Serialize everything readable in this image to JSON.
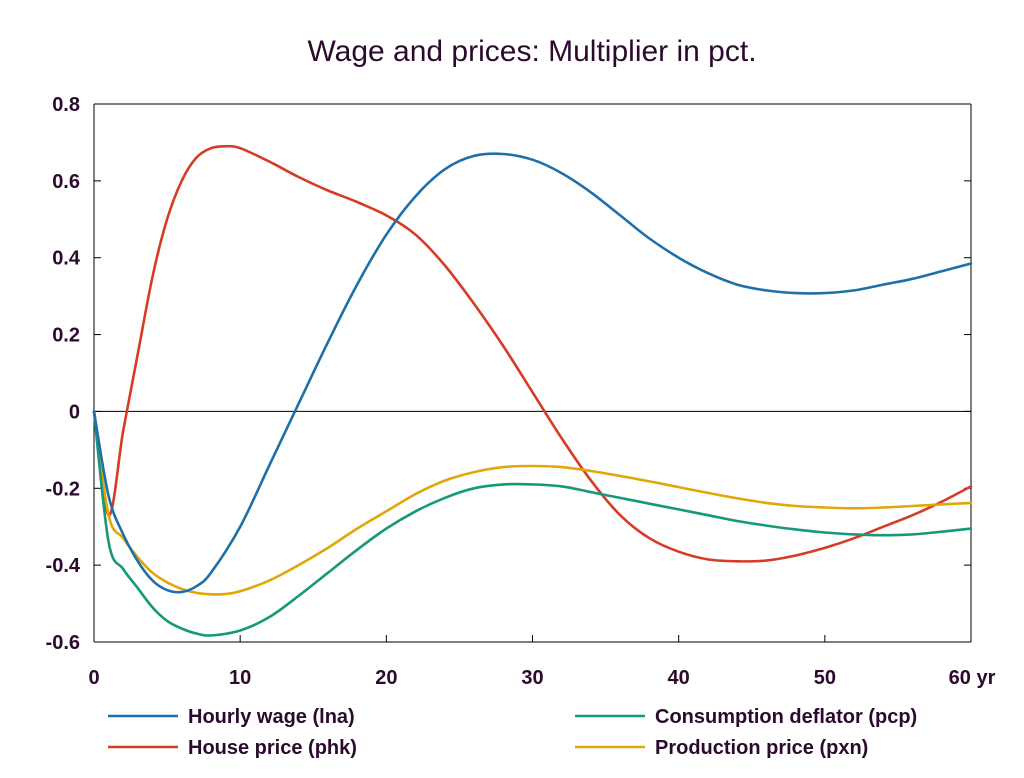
{
  "chart_data": {
    "type": "line",
    "title": "Wage and prices: Multiplier in pct.",
    "xlabel": "",
    "ylabel": "",
    "x_unit": "yr",
    "xlim": [
      0,
      60
    ],
    "ylim": [
      -0.6,
      0.8
    ],
    "x_ticks": [
      0,
      10,
      20,
      30,
      40,
      50,
      60
    ],
    "y_ticks": [
      0.8,
      0.6,
      0.4,
      0.2,
      0,
      -0.2,
      -0.4,
      -0.6
    ],
    "y_tick_labels": [
      "0.8",
      "0.6",
      "0.4",
      "0.2",
      "0",
      "-0.2",
      "-0.4",
      "-0.6"
    ],
    "legend_position": "bottom",
    "series": [
      {
        "name": "Hourly wage (lna)",
        "color": "#1f6fa8",
        "x": [
          0,
          1,
          2,
          3,
          4,
          5,
          6,
          7,
          8,
          10,
          12,
          14,
          16,
          18,
          20,
          22,
          24,
          26,
          28,
          30,
          32,
          34,
          36,
          38,
          40,
          42,
          44,
          46,
          48,
          50,
          52,
          54,
          56,
          58,
          60
        ],
        "y": [
          0,
          -0.22,
          -0.32,
          -0.39,
          -0.44,
          -0.465,
          -0.47,
          -0.455,
          -0.42,
          -0.3,
          -0.14,
          0.02,
          0.18,
          0.33,
          0.46,
          0.56,
          0.63,
          0.665,
          0.67,
          0.655,
          0.62,
          0.57,
          0.51,
          0.45,
          0.4,
          0.36,
          0.33,
          0.315,
          0.308,
          0.308,
          0.315,
          0.33,
          0.345,
          0.365,
          0.385
        ]
      },
      {
        "name": "House price (phk)",
        "color": "#d63b26",
        "x": [
          0,
          1,
          2,
          3,
          4,
          5,
          6,
          7,
          8,
          9,
          10,
          12,
          14,
          16,
          18,
          20,
          22,
          24,
          26,
          28,
          30,
          32,
          34,
          36,
          38,
          40,
          42,
          44,
          46,
          48,
          50,
          52,
          54,
          56,
          58,
          60
        ],
        "y": [
          0,
          -0.27,
          -0.05,
          0.15,
          0.35,
          0.5,
          0.6,
          0.66,
          0.685,
          0.69,
          0.685,
          0.65,
          0.61,
          0.575,
          0.545,
          0.51,
          0.46,
          0.38,
          0.28,
          0.17,
          0.05,
          -0.07,
          -0.18,
          -0.27,
          -0.33,
          -0.365,
          -0.385,
          -0.39,
          -0.388,
          -0.375,
          -0.355,
          -0.33,
          -0.3,
          -0.27,
          -0.235,
          -0.195
        ]
      },
      {
        "name": "Consumption deflator (pcp)",
        "color": "#17987a",
        "x": [
          0,
          1,
          2,
          3,
          4,
          5,
          6,
          7,
          8,
          10,
          12,
          14,
          16,
          18,
          20,
          22,
          24,
          26,
          28,
          30,
          32,
          34,
          36,
          38,
          40,
          42,
          44,
          46,
          48,
          50,
          52,
          54,
          56,
          58,
          60
        ],
        "y": [
          0,
          -0.34,
          -0.41,
          -0.46,
          -0.51,
          -0.545,
          -0.565,
          -0.578,
          -0.583,
          -0.57,
          -0.535,
          -0.48,
          -0.42,
          -0.36,
          -0.305,
          -0.26,
          -0.225,
          -0.2,
          -0.19,
          -0.19,
          -0.195,
          -0.21,
          -0.225,
          -0.24,
          -0.255,
          -0.27,
          -0.285,
          -0.297,
          -0.307,
          -0.315,
          -0.32,
          -0.322,
          -0.32,
          -0.313,
          -0.305
        ]
      },
      {
        "name": "Production price (pxn)",
        "color": "#e1a70a",
        "x": [
          0,
          1,
          2,
          3,
          4,
          5,
          6,
          7,
          8,
          9,
          10,
          12,
          14,
          16,
          18,
          20,
          22,
          24,
          26,
          28,
          30,
          32,
          34,
          36,
          38,
          40,
          42,
          44,
          46,
          48,
          50,
          52,
          54,
          56,
          58,
          60
        ],
        "y": [
          0,
          -0.27,
          -0.33,
          -0.38,
          -0.42,
          -0.445,
          -0.462,
          -0.472,
          -0.476,
          -0.475,
          -0.468,
          -0.44,
          -0.4,
          -0.355,
          -0.305,
          -0.26,
          -0.215,
          -0.18,
          -0.158,
          -0.145,
          -0.142,
          -0.145,
          -0.155,
          -0.168,
          -0.182,
          -0.197,
          -0.212,
          -0.226,
          -0.238,
          -0.246,
          -0.25,
          -0.252,
          -0.25,
          -0.246,
          -0.242,
          -0.238
        ]
      }
    ]
  }
}
